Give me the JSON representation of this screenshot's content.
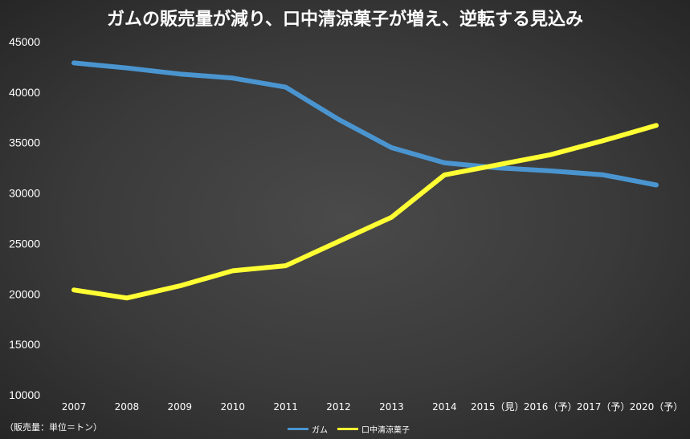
{
  "chart_data": {
    "type": "line",
    "title": "ガムの販売量が減り、口中清涼菓子が増え、逆転する見込み",
    "categories": [
      "2007",
      "2008",
      "2009",
      "2010",
      "2011",
      "2012",
      "2013",
      "2014",
      "2015（見）",
      "2016（予）",
      "2017（予）",
      "2020（予）"
    ],
    "ylim": [
      10000,
      45000
    ],
    "yticks": [
      10000,
      15000,
      20000,
      25000,
      30000,
      35000,
      40000,
      45000
    ],
    "grid": false,
    "legend_position": "bottom",
    "series": [
      {
        "name": "ガム",
        "color": "#4a95d0",
        "values": [
          42900,
          42400,
          41800,
          41400,
          40500,
          37300,
          34500,
          33000,
          32500,
          32200,
          31800,
          30800
        ]
      },
      {
        "name": "口中清涼菓子",
        "color": "#ffff33",
        "values": [
          20400,
          19600,
          20800,
          22300,
          22800,
          25200,
          27600,
          31800,
          32800,
          33800,
          35200,
          36700
        ]
      }
    ],
    "note": "（販売量：単位＝トン）"
  }
}
